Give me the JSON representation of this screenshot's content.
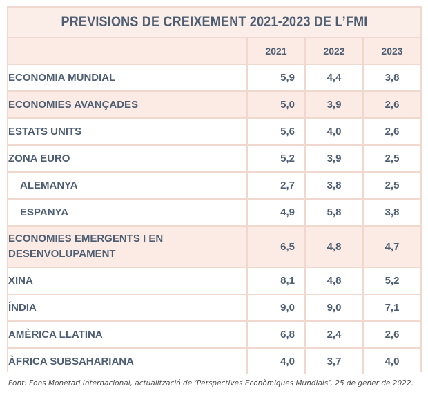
{
  "title": "PREVISIONS DE CREIXEMENT 2021-2023 DE L’FMI",
  "years": [
    "2021",
    "2022",
    "2023"
  ],
  "rows": [
    {
      "label": "ECONOMIA MUNDIAL",
      "values": [
        "5,9",
        "4,4",
        "3,8"
      ]
    },
    {
      "label": "ECONOMIES AVANÇADES",
      "values": [
        "5,0",
        "3,9",
        "2,6"
      ]
    },
    {
      "label": "ESTATS UNITS",
      "values": [
        "5,6",
        "4,0",
        "2,6"
      ]
    },
    {
      "label": "ZONA EURO",
      "values": [
        "5,2",
        "3,9",
        "2,5"
      ]
    },
    {
      "label": "ALEMANYA",
      "values": [
        "2,7",
        "3,8",
        "2,5"
      ]
    },
    {
      "label": "ESPANYA",
      "values": [
        "4,9",
        "5,8",
        "3,8"
      ]
    },
    {
      "label": "ECONOMIES EMERGENTS I EN DESENVOLUPAMENT",
      "values": [
        "6,5",
        "4,8",
        "4,7"
      ]
    },
    {
      "label": "XINA",
      "values": [
        "8,1",
        "4,8",
        "5,2"
      ]
    },
    {
      "label": "ÍNDIA",
      "values": [
        "9,0",
        "9,0",
        "7,1"
      ]
    },
    {
      "label": "AMÈRICA LLATINA",
      "values": [
        "6,8",
        "2,4",
        "2,6"
      ]
    },
    {
      "label": "ÀFRICA SUBSAHARIANA",
      "values": [
        "4,0",
        "3,7",
        "4,0"
      ]
    }
  ],
  "source": "Font: Fons Monetari Internacional, actualització de ‘Perspectives Econòmiques Mundials’, 25 de gener de 2022.",
  "colors": {
    "text": "#4d5d72",
    "border": "#f0d8cf",
    "shade": "#fcebe5"
  }
}
